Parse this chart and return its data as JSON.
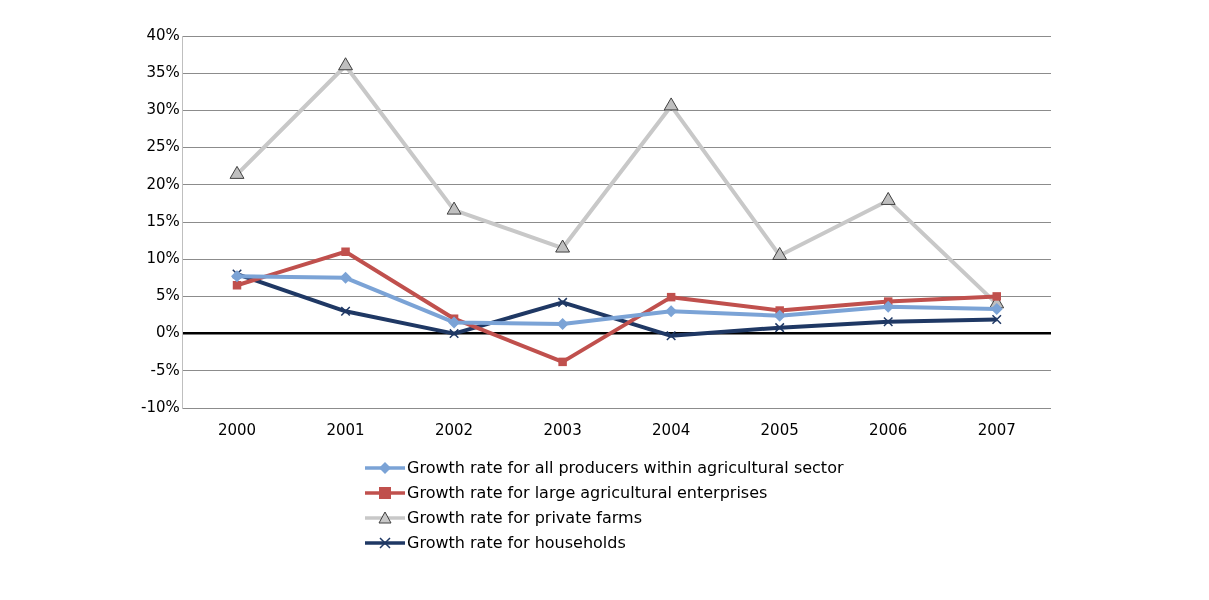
{
  "chart_data": {
    "type": "line",
    "categories": [
      "2000",
      "2001",
      "2002",
      "2003",
      "2004",
      "2005",
      "2006",
      "2007"
    ],
    "series": [
      {
        "name": "Growth rate for all producers within agricultural sector",
        "color": "#7ba3d6",
        "marker": "diamond",
        "values": [
          7.7,
          7.5,
          1.5,
          1.3,
          3.0,
          2.4,
          3.6,
          3.3
        ]
      },
      {
        "name": "Growth rate for large agricultural enterprises",
        "color": "#c0504d",
        "marker": "square",
        "values": [
          6.5,
          11.0,
          2.0,
          -3.8,
          4.9,
          3.1,
          4.3,
          5.0
        ]
      },
      {
        "name": "Growth rate for private farms",
        "color": "#c8c8c8",
        "marker": "triangle",
        "values": [
          21.4,
          36.0,
          16.6,
          11.5,
          30.6,
          10.5,
          17.9,
          4.0
        ]
      },
      {
        "name": "Growth rate for households",
        "color": "#1f3864",
        "marker": "cross",
        "values": [
          8.0,
          3.0,
          0.0,
          4.2,
          -0.3,
          0.8,
          1.6,
          1.9
        ]
      }
    ],
    "ylim": [
      -10,
      40
    ],
    "yticks": [
      {
        "value": -10,
        "label": "-10%"
      },
      {
        "value": -5,
        "label": "-5%"
      },
      {
        "value": 0,
        "label": "0%"
      },
      {
        "value": 5,
        "label": "5%"
      },
      {
        "value": 10,
        "label": "10%"
      },
      {
        "value": 15,
        "label": "15%"
      },
      {
        "value": 20,
        "label": "20%"
      },
      {
        "value": 25,
        "label": "25%"
      },
      {
        "value": 30,
        "label": "30%"
      },
      {
        "value": 35,
        "label": "35%"
      },
      {
        "value": 40,
        "label": "40%"
      }
    ],
    "grid": "y",
    "legend": "bottom"
  }
}
